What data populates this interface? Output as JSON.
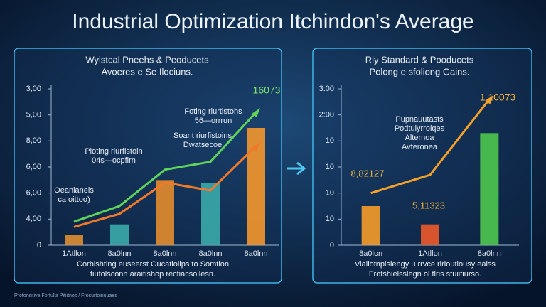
{
  "title": "Industrial Optimization Itchindon's Average",
  "footer_note": "Protonsitive Fortulla Pitiitnos / Frosurtoiriouaes",
  "chart_data": [
    {
      "type": "bar",
      "subtitle": [
        "Wylstcal Pneehs & Peoducets",
        "Avoeres e Se Ilociuns."
      ],
      "categories": [
        "1Atllon",
        "8a0lnn",
        "8a0lnn",
        "8a0lnn",
        "8a0lnn"
      ],
      "ylim": [
        0,
        6
      ],
      "yticks": [
        0,
        {
          "value": 1,
          "label": "4,00"
        },
        {
          "value": 2,
          "label": "6,00"
        },
        {
          "value": 3,
          "label": "6,00"
        },
        {
          "value": 4,
          "label": "8,00"
        },
        {
          "value": 5,
          "label": "5,00"
        },
        {
          "value": 6,
          "label": "3,00"
        }
      ],
      "bars": {
        "values": [
          0.4,
          0.8,
          2.5,
          2.4,
          4.5
        ],
        "colors": [
          "#d98b32",
          "#3aa7a8",
          "#e08a2c",
          "#3aa7a8",
          "#f0952e"
        ]
      },
      "series": [
        {
          "color": "#5fd35a",
          "values": [
            0.9,
            1.5,
            2.9,
            3.2,
            5.1
          ]
        },
        {
          "color": "#f07a2a",
          "values": [
            0.7,
            1.2,
            2.4,
            2.1,
            3.8
          ]
        }
      ],
      "annotations": [
        [
          "16073"
        ],
        [
          "Foting riurtistohs",
          "56—orrrun"
        ],
        [
          "Soant riurfistoins",
          "Dwatsecoe"
        ],
        [
          "Pioting riurfistoin",
          "04s—ocpfirn"
        ],
        [
          "Oeanlanels",
          "ca oittoo)"
        ]
      ],
      "footer": [
        "Corbishting euseerst Gucatiolips to Somtion",
        "tiutolsconn araitishop rectiacsoilesn."
      ]
    },
    {
      "type": "bar",
      "subtitle": [
        "Riy Standard & Pooducets",
        "Polong e sfoliong Gains."
      ],
      "categories": [
        "8a0lon",
        "1Atllon",
        "8a0lnn"
      ],
      "ylim": [
        0,
        6
      ],
      "yticks": [
        0,
        {
          "value": 1,
          "label": "10"
        },
        {
          "value": 2,
          "label": "10"
        },
        {
          "value": 3,
          "label": "10"
        },
        {
          "value": 4,
          "label": "10"
        },
        {
          "value": 5,
          "label": "2:00"
        },
        {
          "value": 6,
          "label": "3:00"
        }
      ],
      "bars": {
        "values": [
          1.5,
          0.8,
          4.3
        ],
        "colors": [
          "#f09a2a",
          "#e8582a",
          "#4cc44e"
        ]
      },
      "series": [
        {
          "color": "#f5a12a",
          "values": [
            2.0,
            2.7,
            5.6
          ]
        }
      ],
      "annotations": [
        [
          "1 10073"
        ],
        [
          "8,82127"
        ],
        [
          "5,11323"
        ],
        [
          "Pupnauutasts",
          "Podtulyrroiqes",
          "Alternoa",
          "Avferonea"
        ]
      ],
      "footer": [
        "Vialiotnplsiengy u rrvce ririoutiousy ealss",
        "Frotshielsslegn ol tlris stuiitiurso."
      ]
    }
  ]
}
